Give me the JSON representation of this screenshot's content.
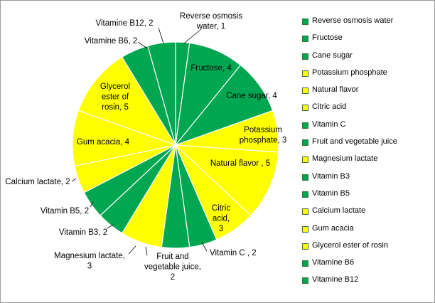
{
  "chart_data": {
    "type": "pie",
    "title": "",
    "legend_position": "right",
    "colors": {
      "green": "#00a650",
      "yellow": "#ffff00",
      "edge": "#ffffff"
    },
    "slices": [
      {
        "name": "Reverse osmosis water",
        "value": 1,
        "color": "#00a650",
        "label": "Reverse osmosis water, 1"
      },
      {
        "name": "Fructose",
        "value": 4,
        "color": "#00a650",
        "label": "Fructose, 4"
      },
      {
        "name": "Cane sugar",
        "value": 4,
        "color": "#00a650",
        "label": "Cane sugar, 4"
      },
      {
        "name": "Potassium phosphate",
        "value": 3,
        "color": "#ffff00",
        "label": "Potassium phosphate, 3"
      },
      {
        "name": "Natural flavor",
        "value": 5,
        "color": "#ffff00",
        "label": "Natural flavor , 5"
      },
      {
        "name": "Citric acid",
        "value": 3,
        "color": "#ffff00",
        "label": "Citric acid, 3"
      },
      {
        "name": "Vitamin C",
        "value": 2,
        "color": "#00a650",
        "label": "Vitamin C , 2"
      },
      {
        "name": "Fruit and vegetable juice",
        "value": 2,
        "color": "#00a650",
        "label": "Fruit and vegetable juice, 2"
      },
      {
        "name": "Magnesium lactate",
        "value": 3,
        "color": "#ffff00",
        "label": "Magnesium lactate, 3"
      },
      {
        "name": "Vitamin B3",
        "value": 2,
        "color": "#00a650",
        "label": "Vitamin B3, 2"
      },
      {
        "name": "Vitamin B5",
        "value": 2,
        "color": "#00a650",
        "label": "Vitamin B5, 2"
      },
      {
        "name": "Calcium lactate",
        "value": 2,
        "color": "#ffff00",
        "label": "Calcium lactate, 2"
      },
      {
        "name": "Gum acacia",
        "value": 4,
        "color": "#ffff00",
        "label": "Gum acacia, 4"
      },
      {
        "name": "Glycerol ester of rosin",
        "value": 5,
        "color": "#ffff00",
        "label": "Glycerol ester of rosin, 5"
      },
      {
        "name": "Vitamine B6",
        "value": 2,
        "color": "#00a650",
        "label": "Vitamine B6, 2"
      },
      {
        "name": "Vitamine B12",
        "value": 2,
        "color": "#00a650",
        "label": "Vitamine B12, 2"
      }
    ]
  }
}
